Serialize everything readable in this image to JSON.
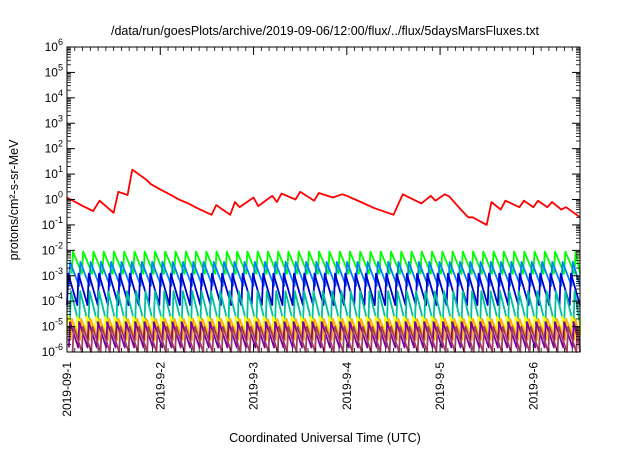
{
  "chart_data": {
    "type": "line",
    "title": "/data/run/goesPlots/archive/2019-09-06/12:00/flux/../flux/5daysMarsFluxes.txt",
    "xlabel": "Coordinated Universal Time (UTC)",
    "ylabel": "protons/cm²-s-sr-MeV",
    "y_scale": "log",
    "ylim": [
      1e-06,
      1000000.0
    ],
    "xlim_days": [
      0,
      5.5
    ],
    "y_ticks": [
      {
        "base": "10",
        "exp": "-6"
      },
      {
        "base": "10",
        "exp": "-5"
      },
      {
        "base": "10",
        "exp": "-4"
      },
      {
        "base": "10",
        "exp": "-3"
      },
      {
        "base": "10",
        "exp": "-2"
      },
      {
        "base": "10",
        "exp": "-1"
      },
      {
        "base": "10",
        "exp": "0"
      },
      {
        "base": "10",
        "exp": "1"
      },
      {
        "base": "10",
        "exp": "2"
      },
      {
        "base": "10",
        "exp": "3"
      },
      {
        "base": "10",
        "exp": "4"
      },
      {
        "base": "10",
        "exp": "5"
      },
      {
        "base": "10",
        "exp": "6"
      }
    ],
    "x_ticks": [
      "2019-09-1",
      "2019-9-2",
      "2019-9-3",
      "2019-9-4",
      "2019-9-5",
      "2019-9-6"
    ],
    "grid": false,
    "legend": "none",
    "series": [
      {
        "color": "#ff0000",
        "x": [
          0,
          0.15,
          0.28,
          0.35,
          0.5,
          0.55,
          0.65,
          0.7,
          0.85,
          0.9,
          1.0,
          1.1,
          1.2,
          1.3,
          1.4,
          1.55,
          1.6,
          1.75,
          1.8,
          1.85,
          2.0,
          2.05,
          2.2,
          2.25,
          2.3,
          2.45,
          2.5,
          2.65,
          2.7,
          2.85,
          2.95,
          3.0,
          3.15,
          3.3,
          3.5,
          3.6,
          3.8,
          3.9,
          3.95,
          4.05,
          4.1,
          4.2,
          4.3,
          4.35,
          4.5,
          4.55,
          4.65,
          4.7,
          4.85,
          4.9,
          5.0,
          5.05,
          5.15,
          5.2,
          5.3,
          5.35,
          5.5
        ],
        "y": [
          1.2,
          0.6,
          0.35,
          0.9,
          0.3,
          2.0,
          1.5,
          15,
          6,
          4,
          2.5,
          1.6,
          1.0,
          0.7,
          0.45,
          0.25,
          0.6,
          0.25,
          0.8,
          0.5,
          1.2,
          0.55,
          1.4,
          0.8,
          1.7,
          1.0,
          2.0,
          0.9,
          1.8,
          1.2,
          1.6,
          1.4,
          0.8,
          0.45,
          0.25,
          1.6,
          0.7,
          1.4,
          0.9,
          1.6,
          1.3,
          0.5,
          0.2,
          0.2,
          0.1,
          0.8,
          0.4,
          0.9,
          0.5,
          0.9,
          0.5,
          0.9,
          0.5,
          0.8,
          0.4,
          0.5,
          0.2
        ]
      },
      {
        "color": "#00ff00",
        "period": 0.11,
        "low": 0.0012,
        "high": 0.009,
        "x_start": 0.05
      },
      {
        "color": "#0080ff",
        "period": 0.11,
        "low": 0.0004,
        "high": 0.0035,
        "x_start": 0.02
      },
      {
        "color": "#0000cc",
        "period": 0.11,
        "low": 7e-05,
        "high": 0.0012,
        "x_start": 0.0
      },
      {
        "color": "#00c0a0",
        "period": 0.1,
        "low": 1.2e-05,
        "high": 0.00025,
        "x_start": 0.03
      },
      {
        "color": "#ffff00",
        "period": 0.1,
        "low": 5e-06,
        "high": 2.5e-05,
        "x_start": 0.0
      },
      {
        "color": "#ffb000",
        "period": 0.1,
        "low": 3e-06,
        "high": 2e-05,
        "x_start": 0.04
      },
      {
        "color": "#8000a0",
        "period": 0.1,
        "low": 1.5e-06,
        "high": 1.5e-05,
        "x_start": 0.02
      },
      {
        "color": "#a04060",
        "period": 0.1,
        "low": 1e-06,
        "high": 1e-05,
        "x_start": 0.06
      }
    ]
  }
}
